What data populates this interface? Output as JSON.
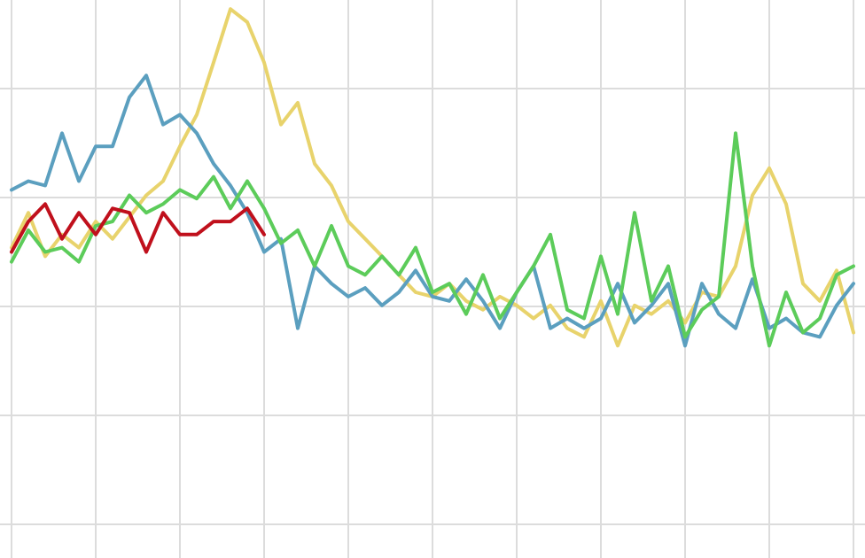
{
  "chart_data": {
    "type": "line",
    "x": [
      0,
      0.2,
      0.4,
      0.6,
      0.8,
      1,
      1.2,
      1.4,
      1.6,
      1.8,
      2,
      2.2,
      2.4,
      2.6,
      2.8,
      3,
      3.2,
      3.4,
      3.6,
      3.8,
      4,
      4.2,
      4.4,
      4.6,
      4.8,
      5,
      5.2,
      5.4,
      5.6,
      5.8,
      6,
      6.2,
      6.4,
      6.6,
      6.8,
      7,
      7.2,
      7.4,
      7.6,
      7.8,
      8,
      8.2,
      8.4,
      8.6,
      8.8,
      9,
      9.2,
      9.4,
      9.6,
      9.8,
      10
    ],
    "series": [
      {
        "color": "#e8d36c",
        "values": [
          2.54,
          2.86,
          2.46,
          2.66,
          2.54,
          2.78,
          2.62,
          2.82,
          3.02,
          3.15,
          3.47,
          3.76,
          4.24,
          4.73,
          4.61,
          4.24,
          3.67,
          3.87,
          3.31,
          3.11,
          2.78,
          2.62,
          2.46,
          2.29,
          2.13,
          2.09,
          2.21,
          2.05,
          1.97,
          2.09,
          2.01,
          1.89,
          2.01,
          1.8,
          1.72,
          2.05,
          1.64,
          2.01,
          1.93,
          2.05,
          1.85,
          2.13,
          2.09,
          2.37,
          3.02,
          3.27,
          2.94,
          2.21,
          2.05,
          2.33,
          1.76
        ]
      },
      {
        "color": "#5b9fbf",
        "values": [
          3.07,
          3.15,
          3.11,
          3.59,
          3.15,
          3.47,
          3.47,
          3.92,
          4.12,
          3.67,
          3.76,
          3.59,
          3.31,
          3.11,
          2.86,
          2.5,
          2.62,
          1.8,
          2.37,
          2.21,
          2.09,
          2.17,
          2.01,
          2.13,
          2.33,
          2.09,
          2.05,
          2.25,
          2.05,
          1.8,
          2.13,
          2.37,
          1.8,
          1.89,
          1.8,
          1.89,
          2.21,
          1.85,
          2.01,
          2.21,
          1.64,
          2.21,
          1.93,
          1.8,
          2.25,
          1.8,
          1.89,
          1.76,
          1.72,
          2.01,
          2.21
        ]
      },
      {
        "color": "#5ccc5a",
        "values": [
          2.41,
          2.7,
          2.5,
          2.54,
          2.41,
          2.74,
          2.78,
          3.02,
          2.86,
          2.94,
          3.07,
          2.99,
          3.19,
          2.9,
          3.15,
          2.9,
          2.58,
          2.7,
          2.37,
          2.74,
          2.37,
          2.29,
          2.46,
          2.29,
          2.54,
          2.13,
          2.21,
          1.93,
          2.29,
          1.89,
          2.13,
          2.37,
          2.66,
          1.97,
          1.89,
          2.46,
          1.93,
          2.86,
          2.05,
          2.37,
          1.72,
          1.97,
          2.09,
          3.59,
          2.37,
          1.64,
          2.13,
          1.76,
          1.89,
          2.29,
          2.37
        ]
      },
      {
        "color": "#c0101c",
        "values": [
          2.5,
          2.78,
          2.94,
          2.62,
          2.86,
          2.66,
          2.9,
          2.86,
          2.5,
          2.86,
          2.66,
          2.66,
          2.78,
          2.78,
          2.9,
          2.66,
          null,
          null,
          null,
          null,
          null,
          null,
          null,
          null,
          null,
          null,
          null,
          null,
          null,
          null,
          null,
          null,
          null,
          null,
          null,
          null,
          null,
          null,
          null,
          null,
          null,
          null,
          null,
          null,
          null,
          null,
          null,
          null,
          null,
          null,
          null
        ]
      }
    ],
    "xlim": [
      -0.137,
      10.137
    ],
    "xticks": [
      0,
      1,
      2,
      3,
      4,
      5,
      6,
      7,
      8,
      9,
      10
    ],
    "ylim": [
      -0.309,
      4.813
    ],
    "yticks": [
      0,
      1,
      2,
      3,
      4
    ],
    "grid": true
  }
}
